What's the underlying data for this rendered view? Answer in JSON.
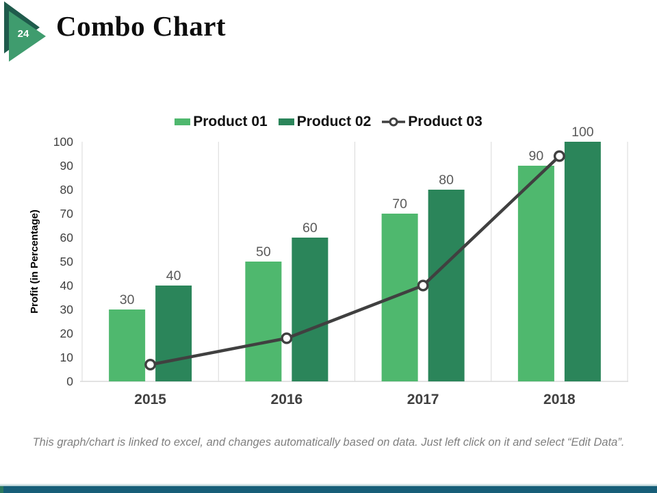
{
  "slide": {
    "page_number": "24",
    "title": "Combo Chart",
    "footnote": "This graph/chart is linked to excel, and changes automatically based on data. Just left click on it and select “Edit Data”."
  },
  "chart_data": {
    "type": "combo: grouped bar + line",
    "categories": [
      "2015",
      "2016",
      "2017",
      "2018"
    ],
    "series": [
      {
        "name": "Product 01",
        "type": "bar",
        "color": "#4FB86E",
        "values": [
          30,
          50,
          70,
          90
        ]
      },
      {
        "name": "Product 02",
        "type": "bar",
        "color": "#2B855A",
        "values": [
          40,
          60,
          80,
          100
        ]
      },
      {
        "name": "Product 03",
        "type": "line",
        "color": "#404040",
        "values": [
          7,
          18,
          40,
          94
        ]
      }
    ],
    "xlabel": "",
    "ylabel": "Profit (in Percentage)",
    "ylim": [
      0,
      100
    ],
    "ytick_step": 10,
    "yticks": [
      0,
      10,
      20,
      30,
      40,
      50,
      60,
      70,
      80,
      90,
      100
    ],
    "legend_position": "top",
    "grid": "vertical lines at category boundaries only",
    "bar_data_labels_shown": true,
    "line_marker": "open circle, white fill"
  },
  "colors": {
    "bar_light_green": "#4FB86E",
    "bar_dark_green": "#2B855A",
    "line_gray": "#404040",
    "gridline": "#d9d9d9",
    "tick_text": "#404040",
    "data_label_text": "#595959",
    "triangle_back": "#1f5b4c",
    "triangle_front": "#3f9c6e",
    "footer_text": "#7f7f7f",
    "bottom_strip": "#175e78",
    "bottom_corner_accent": "#2d7a5f"
  }
}
